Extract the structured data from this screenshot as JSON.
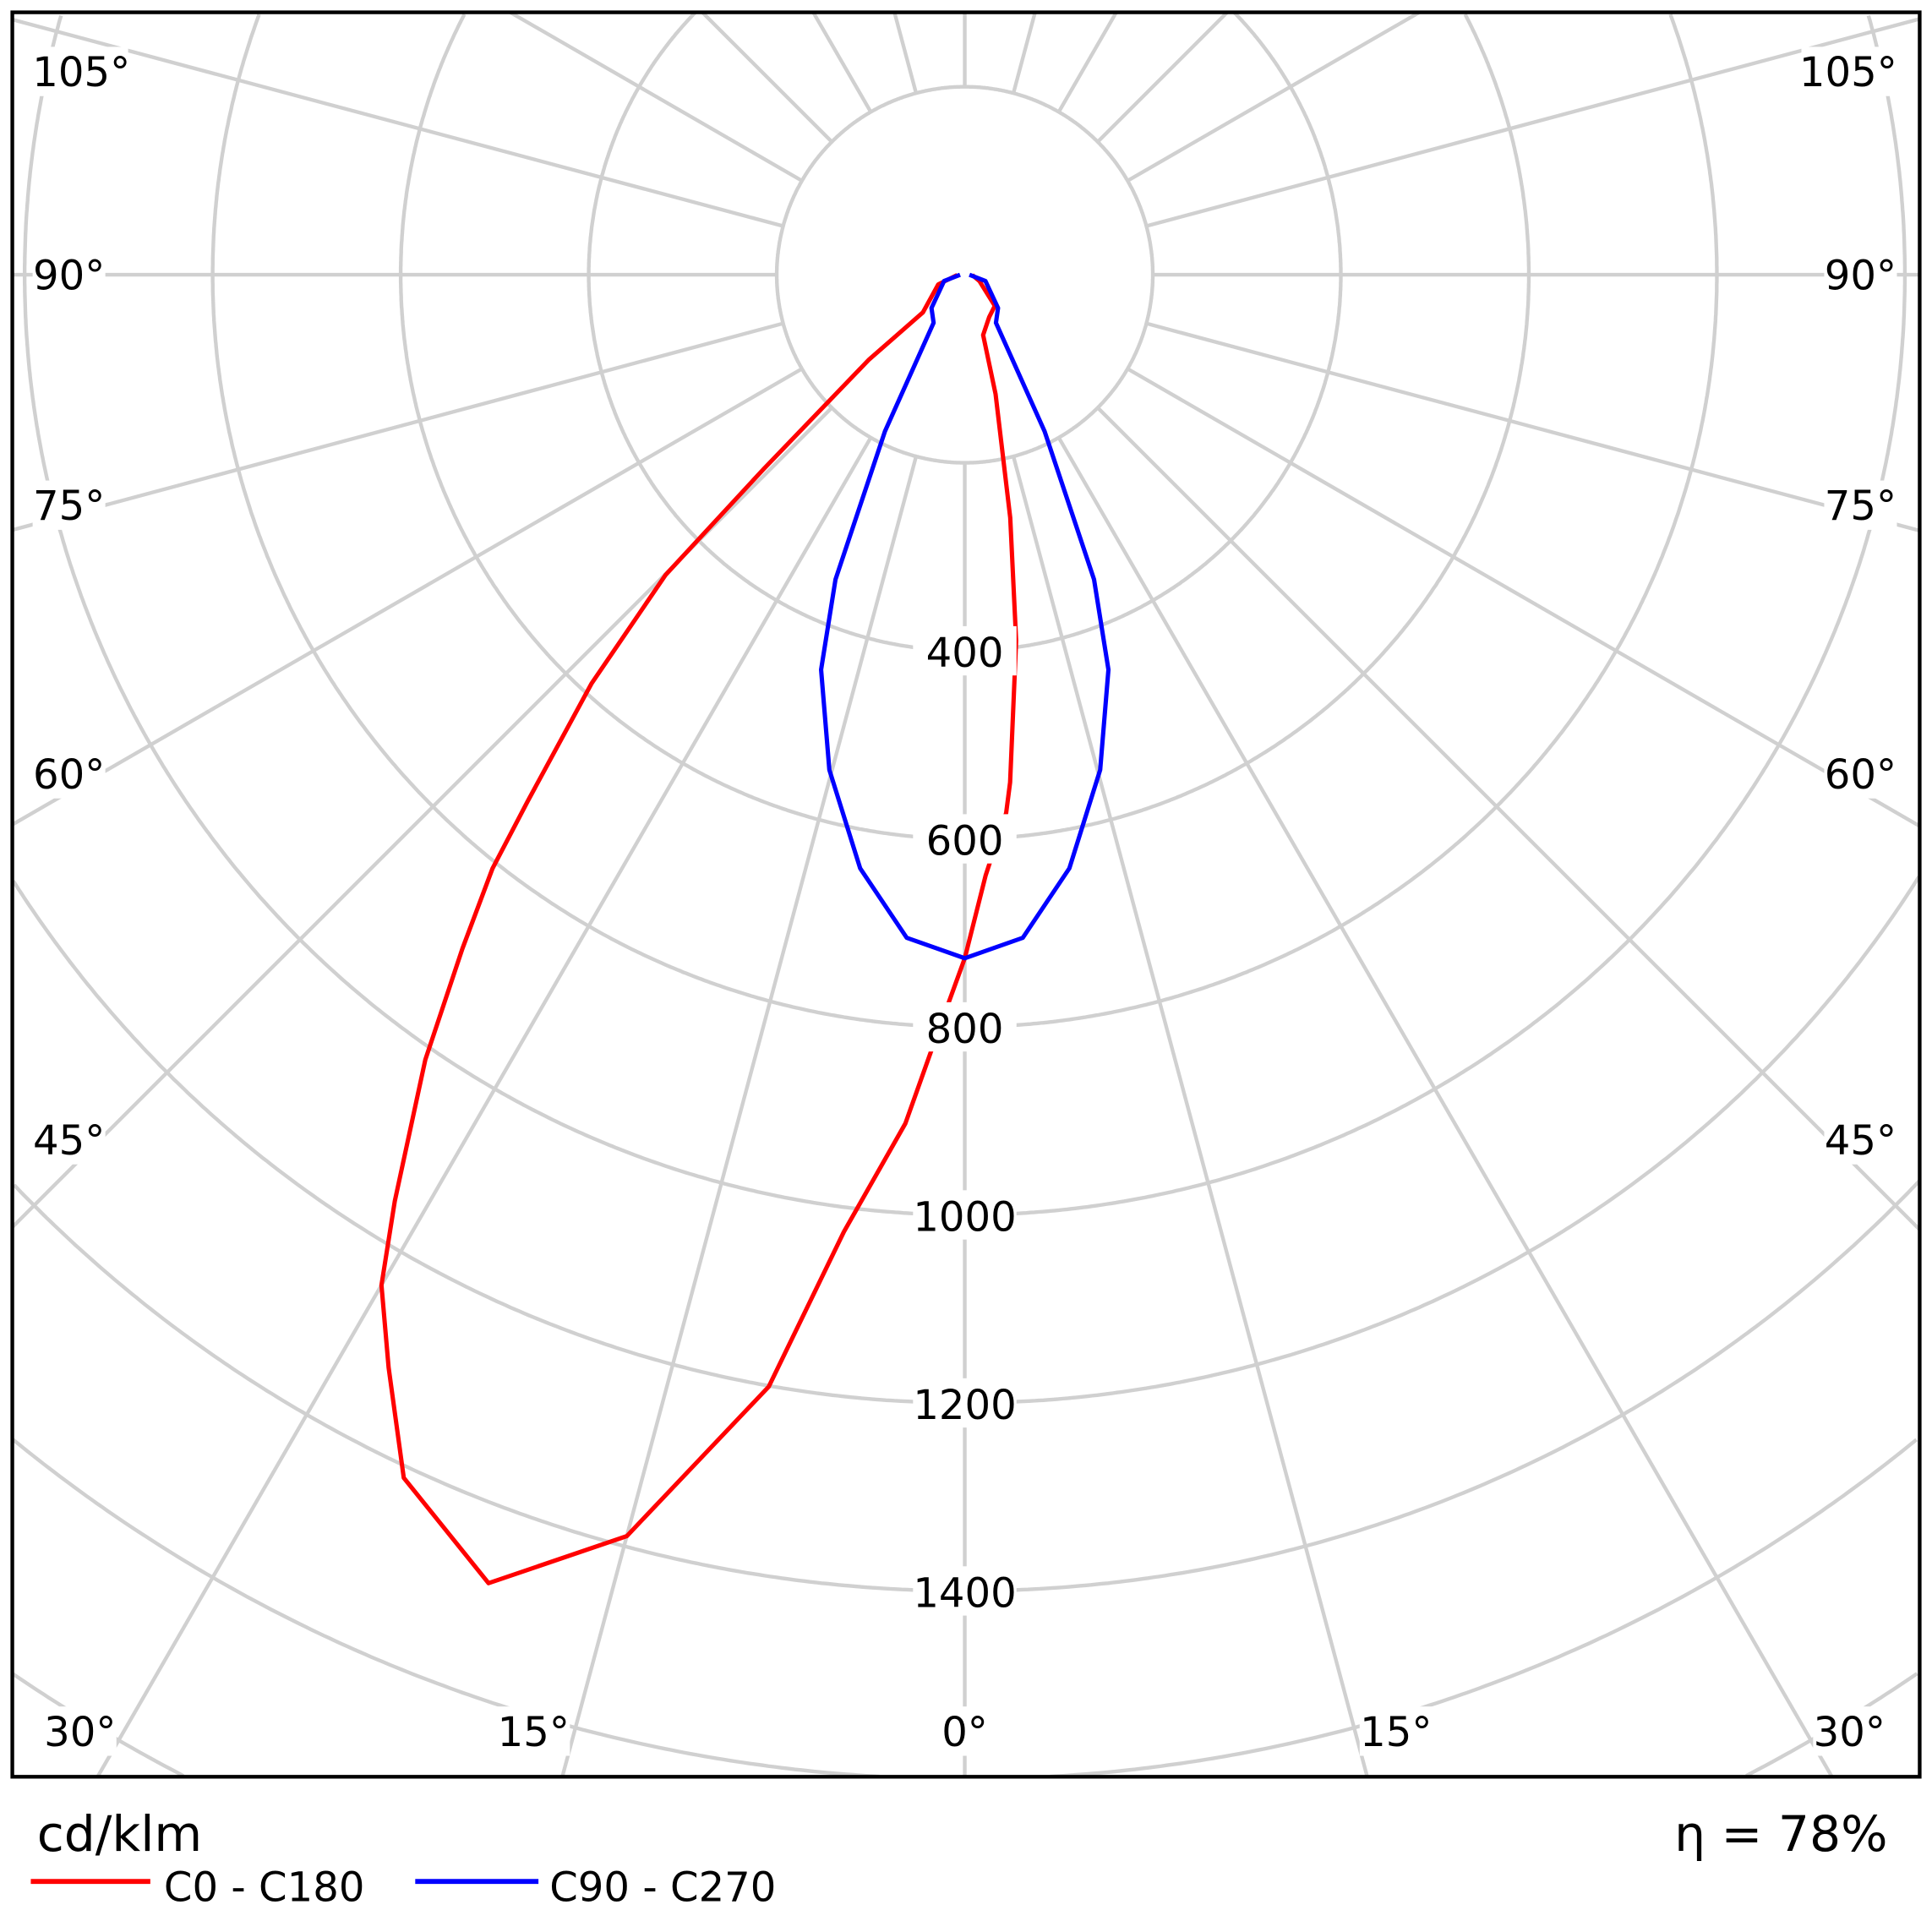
{
  "chart_data": {
    "type": "polar-line",
    "unit_label": "cd/klm",
    "efficiency_label": "η = 78%",
    "radial_ticks": [
      400,
      600,
      800,
      1000,
      1200,
      1400
    ],
    "radial_grid_step": 200,
    "radial_grid_max": 2000,
    "angle_grid_step": 15,
    "angle_ticks_left": [
      "105°",
      "90°",
      "75°",
      "60°",
      "45°",
      "30°",
      "15°",
      "0°"
    ],
    "angle_ticks_right": [
      "105°",
      "90°",
      "75°",
      "60°",
      "45°",
      "30°",
      "15°"
    ],
    "angle_convention": "0° points down (nadir); negative angles on the left",
    "grid": true,
    "legend_placement": "bottom-left",
    "series": [
      {
        "name": "C0 - C180",
        "color": "#ff0000",
        "points": [
          [
            -88,
            8
          ],
          [
            -70,
            30
          ],
          [
            -48,
            60
          ],
          [
            -48.5,
            136
          ],
          [
            -46,
            297
          ],
          [
            -44.9,
            451
          ],
          [
            -42.4,
            589
          ],
          [
            -39.7,
            728
          ],
          [
            -38.5,
            807
          ],
          [
            -36.7,
            894
          ],
          [
            -34.5,
            1013
          ],
          [
            -31.6,
            1157
          ],
          [
            -30,
            1241
          ],
          [
            -27.8,
            1314
          ],
          [
            -25,
            1412
          ],
          [
            -20,
            1481
          ],
          [
            -15,
            1389
          ],
          [
            -10,
            1201
          ],
          [
            -7.2,
            1026
          ],
          [
            -4,
            905
          ],
          [
            -2.1,
            809
          ],
          [
            0,
            727
          ],
          [
            2,
            639
          ],
          [
            4.4,
            574
          ],
          [
            5.1,
            542
          ],
          [
            8,
            393
          ],
          [
            10.6,
            263
          ],
          [
            14.5,
            131
          ],
          [
            17,
            67
          ],
          [
            30,
            52
          ],
          [
            44,
            46
          ],
          [
            67,
            17
          ],
          [
            88,
            8
          ]
        ]
      },
      {
        "name": "C90 - C270",
        "color": "#0000ff",
        "points": [
          [
            -90,
            5
          ],
          [
            -73,
            23
          ],
          [
            -45,
            50
          ],
          [
            -33,
            61
          ],
          [
            -27,
            187
          ],
          [
            -23,
            352
          ],
          [
            -20,
            447
          ],
          [
            -15.3,
            546
          ],
          [
            -10,
            641
          ],
          [
            -5,
            708
          ],
          [
            0,
            727
          ],
          [
            5,
            708
          ],
          [
            10,
            641
          ],
          [
            15.3,
            546
          ],
          [
            20,
            447
          ],
          [
            23,
            352
          ],
          [
            27,
            187
          ],
          [
            33,
            61
          ],
          [
            45,
            50
          ],
          [
            73,
            23
          ],
          [
            90,
            5
          ]
        ]
      }
    ]
  },
  "colors": {
    "grid": "#d0d0d0",
    "frame": "#000000"
  }
}
